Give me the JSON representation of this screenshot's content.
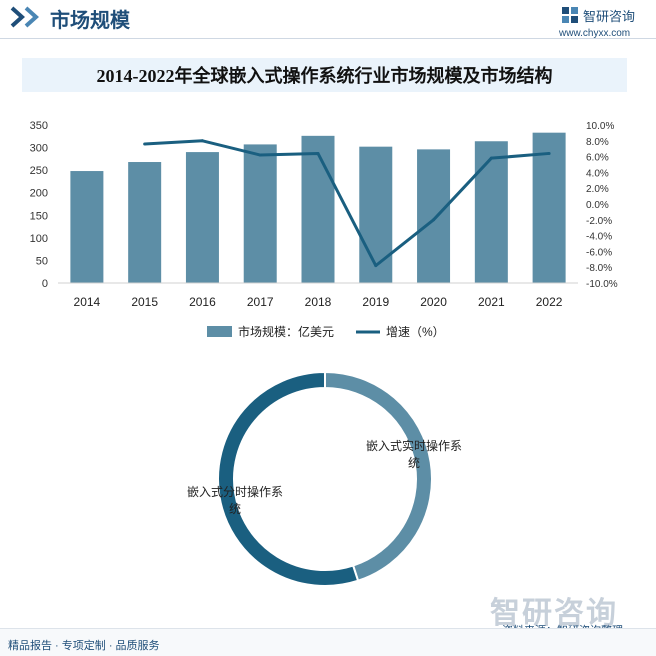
{
  "header": {
    "title": "市场规模",
    "brand_name": "智研咨询",
    "brand_url": "www.chyxx.com",
    "icon": "double-chevron-icon",
    "brand_color": "#1f4e79"
  },
  "chart_title": "2014-2022年全球嵌入式操作系统行业市场规模及市场结构",
  "chart_data": [
    {
      "type": "bar",
      "categories": [
        "2014",
        "2015",
        "2016",
        "2017",
        "2018",
        "2019",
        "2020",
        "2021",
        "2022"
      ],
      "series": [
        {
          "name": "市场规模：亿美元",
          "type": "bar",
          "axis": "left",
          "values": [
            248,
            268,
            290,
            307,
            326,
            302,
            296,
            314,
            333
          ],
          "color": "#5d8ea6"
        },
        {
          "name": "增速（%）",
          "type": "line",
          "axis": "right",
          "values": [
            null,
            7.6,
            8.0,
            6.2,
            6.4,
            -7.8,
            -2.0,
            5.8,
            6.4
          ],
          "color": "#1a5f80"
        }
      ],
      "y_left": {
        "min": 0,
        "max": 350,
        "ticks": [
          "0",
          "50",
          "100",
          "150",
          "200",
          "250",
          "300",
          "350"
        ]
      },
      "y_right": {
        "min": -10,
        "max": 10,
        "ticks": [
          "-10.0%",
          "-8.0%",
          "-6.0%",
          "-4.0%",
          "-2.0%",
          "0.0%",
          "2.0%",
          "4.0%",
          "6.0%",
          "8.0%",
          "10.0%"
        ]
      },
      "legend_position": "bottom",
      "grid": false
    },
    {
      "type": "pie",
      "donut": true,
      "labels": [
        "嵌入式实时操作系统",
        "嵌入式分时操作系统"
      ],
      "values": [
        45,
        55
      ],
      "colors": [
        "#5d8ea6",
        "#1a5f80"
      ]
    }
  ],
  "source": {
    "brand": "智研咨询",
    "text": "资料来源：智研咨询整理"
  },
  "footer": {
    "text": "精品报告 · 专项定制 · 品质服务"
  }
}
